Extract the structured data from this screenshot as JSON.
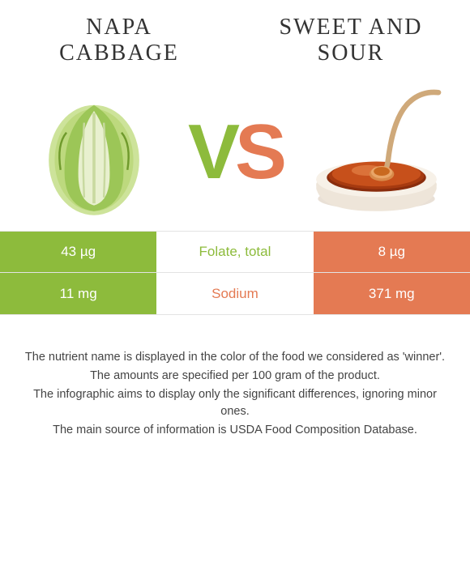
{
  "food_left": {
    "name": "Napa\ncabbage",
    "color": "#8dbb3c"
  },
  "food_right": {
    "name": "Sweet and\nsour",
    "color": "#e47a53"
  },
  "vs": {
    "v_color": "#8dbb3c",
    "s_color": "#e47a53"
  },
  "comparison_rows": [
    {
      "nutrient": "Folate, total",
      "left_val": "43 µg",
      "right_val": "8 µg",
      "winner": "left"
    },
    {
      "nutrient": "Sodium",
      "left_val": "11 mg",
      "right_val": "371 mg",
      "winner": "right"
    }
  ],
  "row_border_color": "#e3e3e3",
  "nutrient_label_fontsize": 17,
  "value_fontsize": 17,
  "title_fontsize": 28,
  "footnotes": [
    "The nutrient name is displayed in the color of the food we considered as 'winner'.",
    "The amounts are specified per 100 gram of the product.",
    "The infographic aims to display only the significant differences, ignoring minor ones.",
    "The main source of information is USDA Food Composition Database."
  ]
}
